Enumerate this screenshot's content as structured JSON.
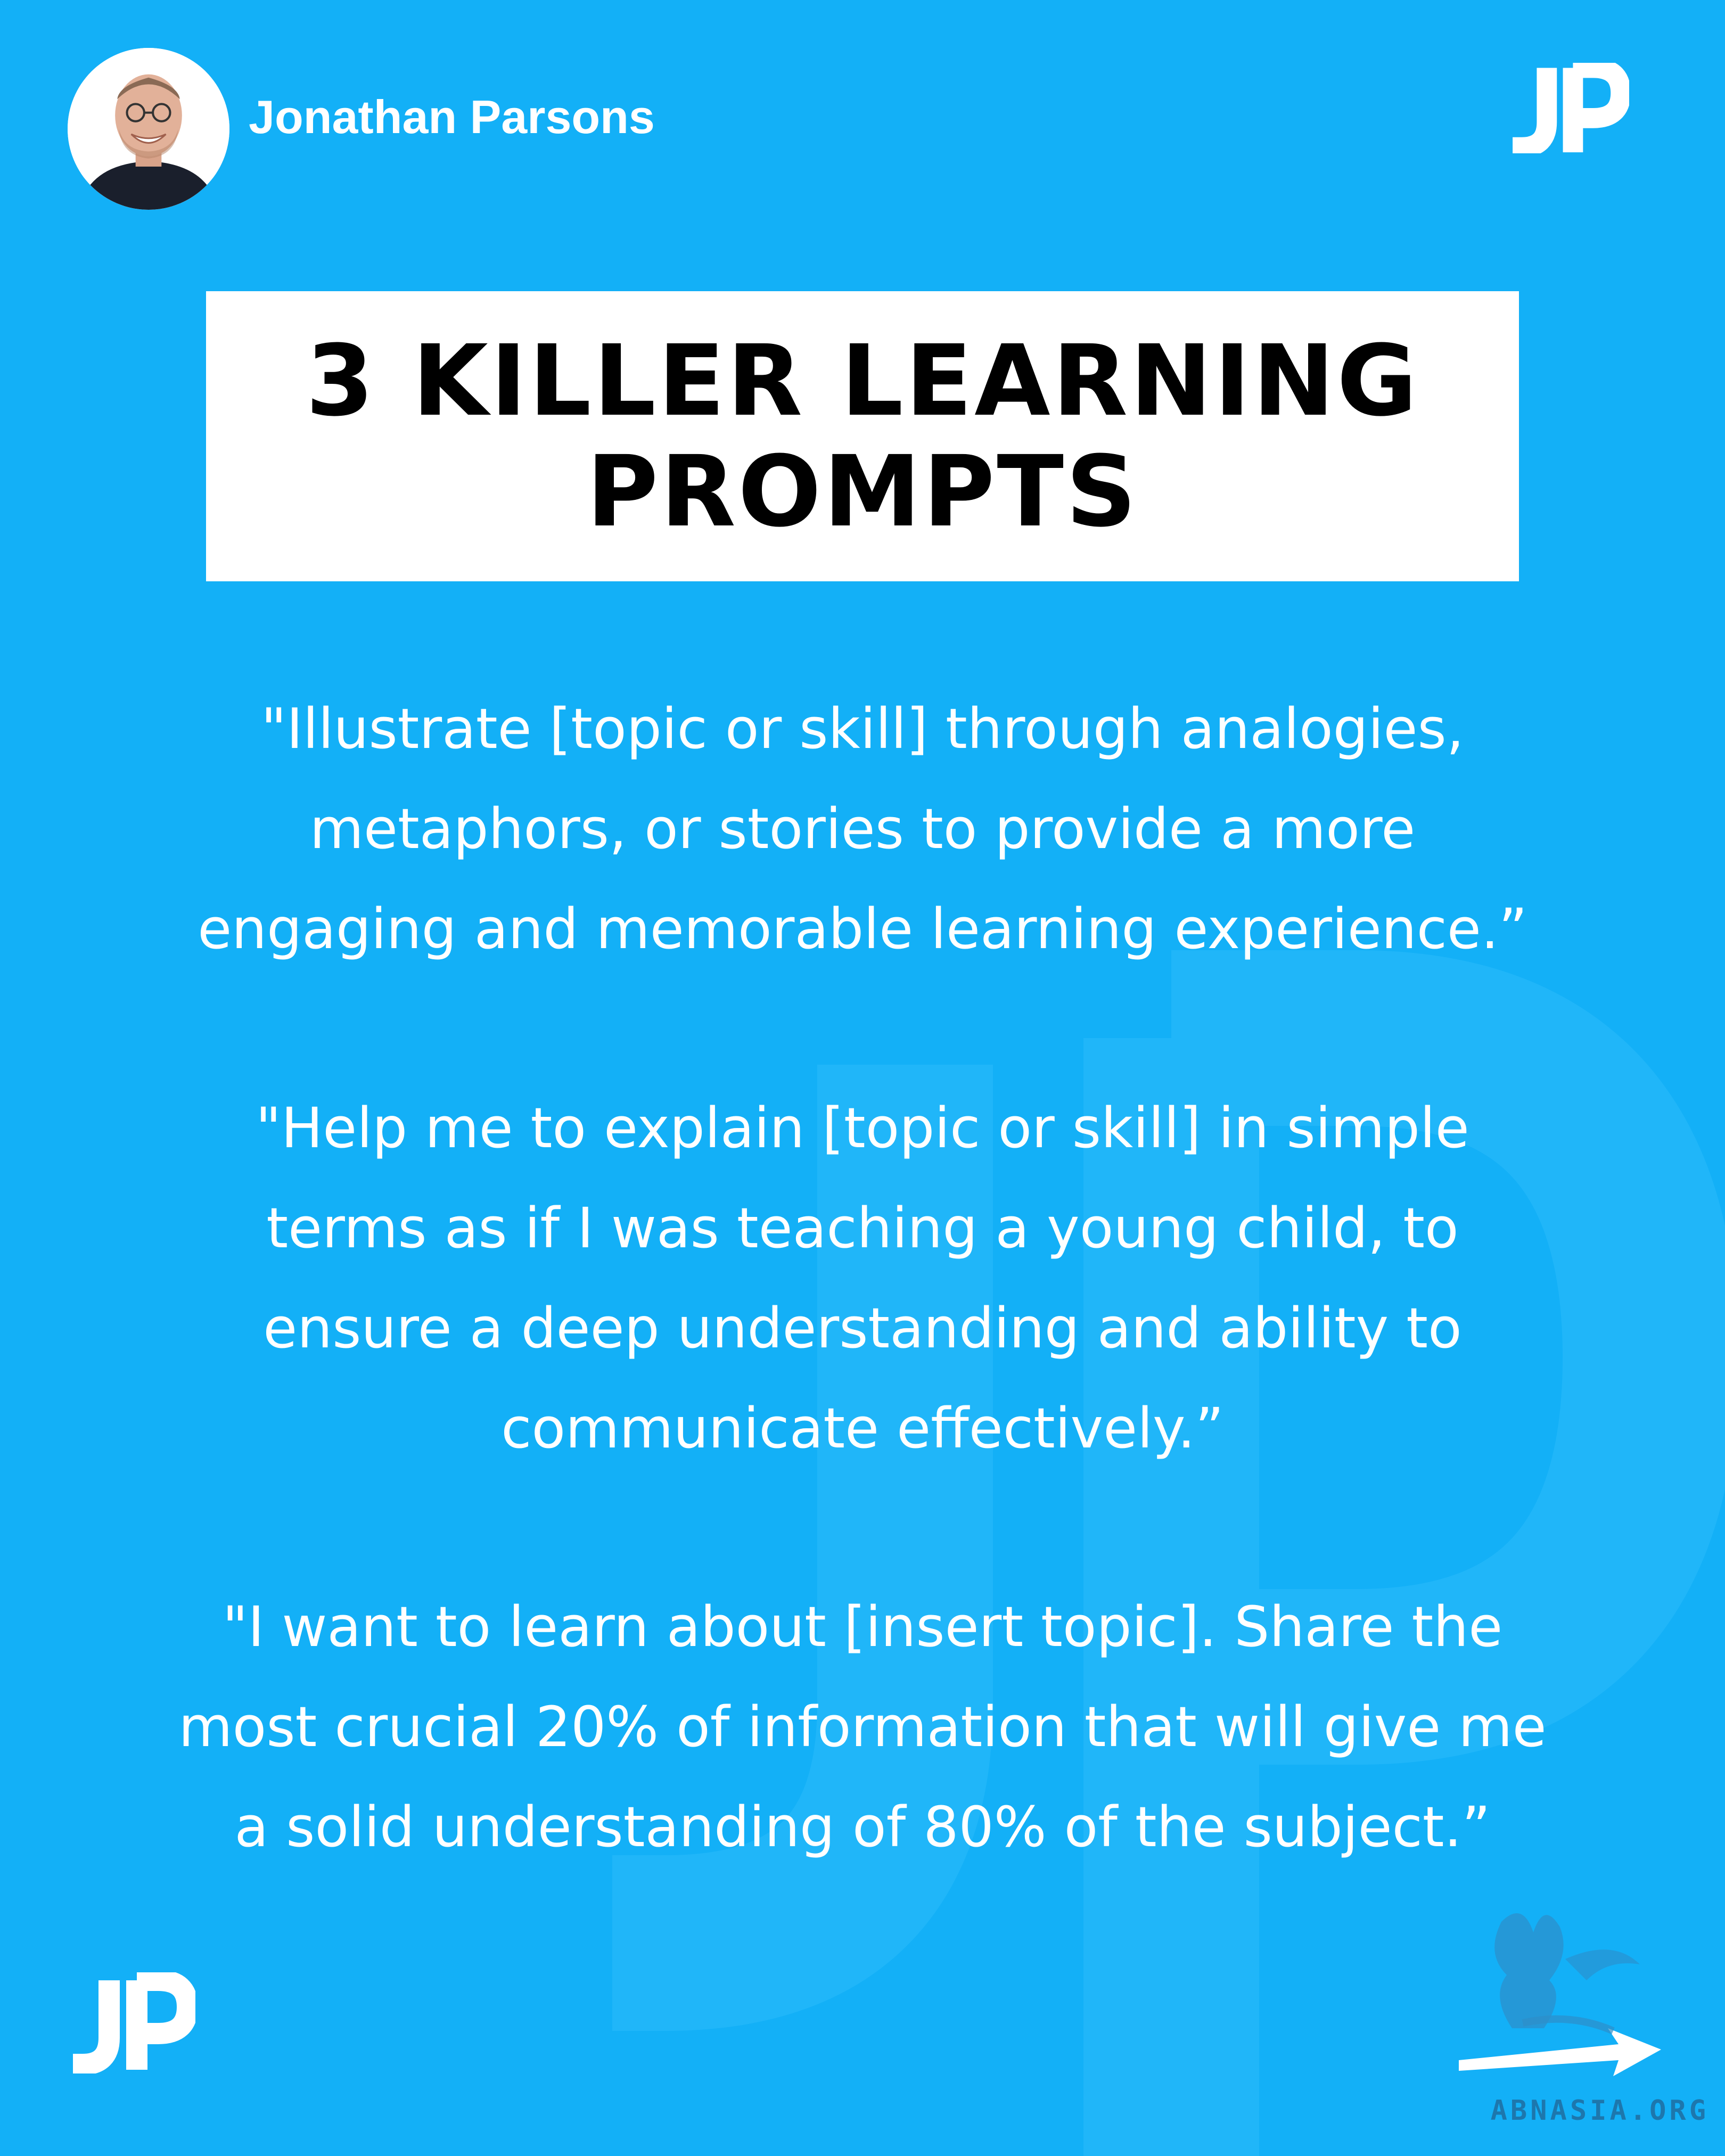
{
  "author": {
    "name": "Jonathan Parsons",
    "avatar_icon": "author-photo"
  },
  "logo": {
    "text": "JP",
    "color": "#ffffff"
  },
  "title": {
    "line1": "3 KILLER LEARNING",
    "line2": "PROMPTS"
  },
  "prompts": [
    {
      "lines": [
        "\"Illustrate [topic or skill] through analogies,",
        "metaphors, or stories to provide a more",
        "engaging and memorable learning experience.”"
      ]
    },
    {
      "lines": [
        "\"Help me to explain [topic or skill] in simple",
        "terms as if I was teaching a young child, to",
        "ensure a deep understanding and ability to",
        "communicate effectively.”"
      ]
    },
    {
      "lines": [
        "\"I want to learn about [insert topic]. Share the",
        "most crucial 20% of information that will give me",
        "a solid understanding of 80% of the subject.”"
      ]
    }
  ],
  "watermark": {
    "text": "ABNASIA.ORG",
    "icon": "griffin-arrow-icon"
  },
  "colors": {
    "background": "#13b0f7",
    "title_box": "#ffffff",
    "title_text": "#000000",
    "body_text": "#ffffff",
    "watermark": "#1d77ad"
  }
}
